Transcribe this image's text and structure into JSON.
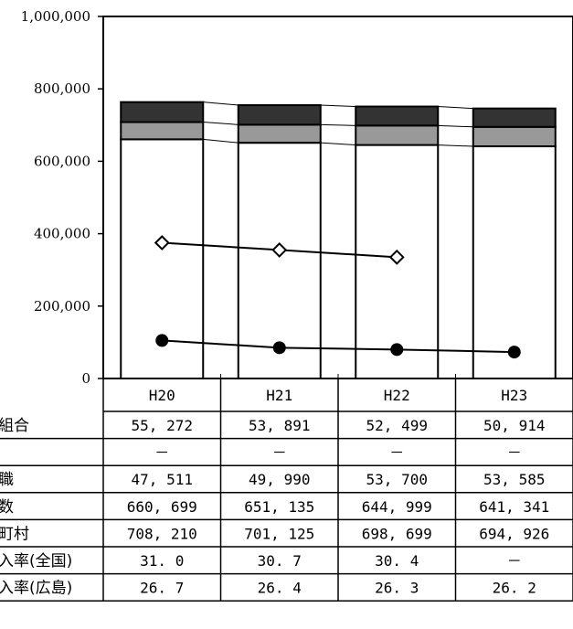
{
  "chart_data": {
    "type": "bar",
    "categories": [
      "H20",
      "H21",
      "H22",
      "H23"
    ],
    "y_ticks": [
      "0",
      "200,000",
      "400,000",
      "600,000",
      "800,000",
      "1,000,000"
    ],
    "ylim": [
      0,
      1000000
    ],
    "stack_series": [
      {
        "color": "#ffffff",
        "values": [
          660699,
          651135,
          644999,
          641341
        ]
      },
      {
        "color": "#999999",
        "values": [
          47511,
          49990,
          53700,
          53585
        ]
      },
      {
        "color": "#333333",
        "values": [
          55272,
          53891,
          52499,
          50914
        ]
      }
    ],
    "line_series": [
      {
        "marker": "diamond-open",
        "values": [
          375000,
          355000,
          335000,
          null
        ]
      },
      {
        "marker": "circle-filled",
        "values": [
          105000,
          85000,
          80000,
          73000
        ]
      }
    ],
    "table": {
      "row_labels": [
        "組合",
        "",
        "職",
        "数",
        "町村",
        "入率(全国)",
        "入率(広島)"
      ],
      "rows": [
        [
          "55, 272",
          "53, 891",
          "52, 499",
          "50, 914"
        ],
        [
          "－",
          "－",
          "－",
          "－"
        ],
        [
          "47, 511",
          "49, 990",
          "53, 700",
          "53, 585"
        ],
        [
          "660, 699",
          "651, 135",
          "644, 999",
          "641, 341"
        ],
        [
          "708, 210",
          "701, 125",
          "698, 699",
          "694, 926"
        ],
        [
          "31. 0",
          "30. 7",
          "30. 4",
          "－"
        ],
        [
          "26. 7",
          "26. 4",
          "26. 3",
          "26. 2"
        ]
      ]
    }
  }
}
